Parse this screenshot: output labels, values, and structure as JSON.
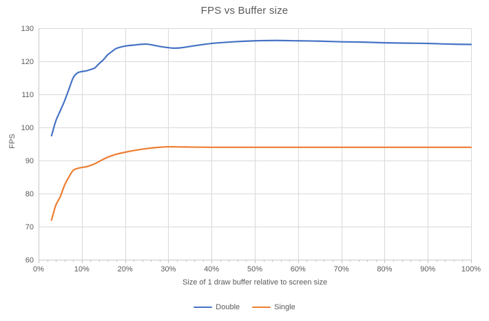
{
  "chart_data": {
    "type": "line",
    "title": "FPS vs Buffer size",
    "xlabel": "Size of 1 draw buffer relative to screen size",
    "ylabel": "FPS",
    "xlim": [
      0,
      100
    ],
    "ylim": [
      60,
      130
    ],
    "x_ticks": [
      "0%",
      "10%",
      "20%",
      "30%",
      "40%",
      "50%",
      "60%",
      "70%",
      "80%",
      "90%",
      "100%"
    ],
    "x_minor_step": 2,
    "y_ticks": [
      60,
      70,
      80,
      90,
      100,
      110,
      120,
      130
    ],
    "grid": true,
    "smooth": true,
    "legend_position": "bottom",
    "series": [
      {
        "name": "Double",
        "color": "#4472C4",
        "points": [
          [
            3,
            97.5
          ],
          [
            4,
            102
          ],
          [
            5,
            105
          ],
          [
            6,
            108
          ],
          [
            7,
            111.5
          ],
          [
            8,
            115
          ],
          [
            9,
            116.5
          ],
          [
            10,
            116.9
          ],
          [
            11,
            117.1
          ],
          [
            12,
            117.5
          ],
          [
            13,
            118
          ],
          [
            14,
            119.3
          ],
          [
            15,
            120.5
          ],
          [
            16,
            122
          ],
          [
            17,
            123
          ],
          [
            18,
            123.9
          ],
          [
            20,
            124.6
          ],
          [
            22,
            124.9
          ],
          [
            25,
            125.2
          ],
          [
            28,
            124.5
          ],
          [
            31,
            124
          ],
          [
            33,
            124.1
          ],
          [
            36,
            124.7
          ],
          [
            40,
            125.4
          ],
          [
            45,
            125.9
          ],
          [
            50,
            126.2
          ],
          [
            55,
            126.3
          ],
          [
            60,
            126.2
          ],
          [
            65,
            126.1
          ],
          [
            70,
            125.9
          ],
          [
            75,
            125.8
          ],
          [
            80,
            125.6
          ],
          [
            85,
            125.5
          ],
          [
            90,
            125.4
          ],
          [
            95,
            125.2
          ],
          [
            100,
            125.1
          ]
        ]
      },
      {
        "name": "Single",
        "color": "#ED7D31",
        "points": [
          [
            3,
            72
          ],
          [
            4,
            76.5
          ],
          [
            5,
            79
          ],
          [
            6,
            82.5
          ],
          [
            7,
            85
          ],
          [
            8,
            87
          ],
          [
            9,
            87.6
          ],
          [
            10,
            87.9
          ],
          [
            11,
            88.1
          ],
          [
            12,
            88.5
          ],
          [
            13,
            89
          ],
          [
            14,
            89.7
          ],
          [
            15,
            90.4
          ],
          [
            16,
            91
          ],
          [
            17,
            91.5
          ],
          [
            18,
            91.9
          ],
          [
            20,
            92.5
          ],
          [
            22,
            93
          ],
          [
            25,
            93.6
          ],
          [
            27,
            93.9
          ],
          [
            30,
            94.15
          ],
          [
            33,
            94.1
          ],
          [
            36,
            94.05
          ],
          [
            40,
            94
          ],
          [
            45,
            94
          ],
          [
            50,
            94
          ],
          [
            60,
            94
          ],
          [
            70,
            94
          ],
          [
            80,
            94
          ],
          [
            90,
            94
          ],
          [
            100,
            94
          ]
        ]
      }
    ]
  },
  "colors": {
    "background": "#FFFFFF",
    "gridline": "#D9D9D9",
    "axis_line": "#C6C6C6",
    "tick": "#BFBFBF",
    "text": "#595959"
  }
}
